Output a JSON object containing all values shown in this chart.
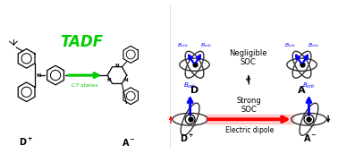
{
  "title": "TADF",
  "title_color": "#00cc00",
  "bg_color": "#ffffff",
  "blue_color": "#0000ff",
  "red_color": "#ff0000",
  "green_color": "#00cc00",
  "black_color": "#000000",
  "negligible_soc_text": "Negligible\nSOC",
  "strong_soc_text": "Strong\nSOC",
  "electric_dipole_text": "Electric dipole",
  "ct_states_text": "CT states"
}
